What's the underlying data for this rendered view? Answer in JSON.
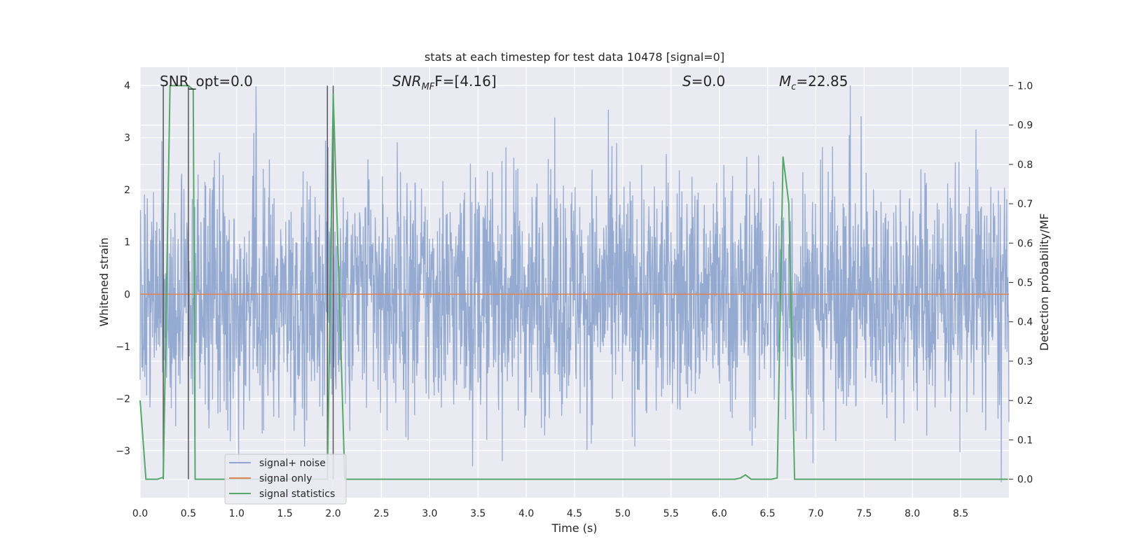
{
  "chart_data": {
    "type": "line",
    "title": "stats at each timestep for test data 10478 [signal=0]",
    "xlabel": "Time (s)",
    "ylabel": "Whitened strain",
    "y2label": "Detection probability/MF",
    "xlim": [
      0.0,
      9.0
    ],
    "ylim": [
      -3.9,
      4.35
    ],
    "y2lim": [
      -0.047,
      1.047
    ],
    "grid": true,
    "legend_position": "lower-left",
    "xticks": [
      "0.0",
      "0.5",
      "1.0",
      "1.5",
      "2.0",
      "2.5",
      "3.0",
      "3.5",
      "4.0",
      "4.5",
      "5.0",
      "5.5",
      "6.0",
      "6.5",
      "7.0",
      "7.5",
      "8.0",
      "8.5"
    ],
    "xtick_values": [
      0.0,
      0.5,
      1.0,
      1.5,
      2.0,
      2.5,
      3.0,
      3.5,
      4.0,
      4.5,
      5.0,
      5.5,
      6.0,
      6.5,
      7.0,
      7.5,
      8.0,
      8.5
    ],
    "yticks": [
      "−3",
      "−2",
      "−1",
      "0",
      "1",
      "2",
      "3",
      "4"
    ],
    "ytick_values": [
      -3,
      -2,
      -1,
      0,
      1,
      2,
      3,
      4
    ],
    "y2ticks": [
      "0.0",
      "0.1",
      "0.2",
      "0.3",
      "0.4",
      "0.5",
      "0.6",
      "0.7",
      "0.8",
      "0.9",
      "1.0"
    ],
    "y2tick_values": [
      0.0,
      0.1,
      0.2,
      0.3,
      0.4,
      0.5,
      0.6,
      0.7,
      0.8,
      0.9,
      1.0
    ],
    "annotations": {
      "snr_opt": "SNR_opt=0.0",
      "snr_mf_main": "SNR",
      "snr_mf_sub": "MF",
      "snr_mf_value": "F=[4.16]",
      "s_main": "S",
      "s_value": "=0.0",
      "mc_main": "M",
      "mc_sub": "c",
      "mc_value": "=22.85"
    },
    "series": [
      {
        "name": "signal+ noise",
        "color": "#8fa6cf",
        "axis": "left",
        "style": "whitened noise, amplitude envelope approx ±2.5, peaks up to 4.0 and down to -3.6"
      },
      {
        "name": "signal only",
        "color": "#dd8452",
        "axis": "left",
        "x": [
          0.0,
          9.0
        ],
        "y": [
          0.0,
          0.0
        ]
      },
      {
        "name": "signal statistics",
        "color": "#55a868",
        "axis": "right",
        "x": [
          0.0,
          0.06,
          0.18,
          0.24,
          0.31,
          0.5,
          0.55,
          0.57,
          1.89,
          1.94,
          2.0,
          2.06,
          2.12,
          6.16,
          6.22,
          6.27,
          6.33,
          6.54,
          6.6,
          6.66,
          6.72,
          6.78,
          8.99
        ],
        "y": [
          0.2,
          0.0,
          0.0,
          0.005,
          1.0,
          1.0,
          0.99,
          0.0,
          0.0,
          0.0,
          0.98,
          0.5,
          0.0,
          0.0,
          0.003,
          0.011,
          0.0,
          0.0,
          0.003,
          0.82,
          0.7,
          0.0,
          0.0
        ]
      }
    ],
    "vertical_lines": {
      "color": "#555555",
      "x": [
        0.24,
        0.5,
        1.94,
        2.0
      ]
    }
  },
  "legend": [
    {
      "label": "signal+ noise",
      "color": "#8fa6cf"
    },
    {
      "label": "signal only",
      "color": "#dd8452"
    },
    {
      "label": "signal statistics",
      "color": "#55a868"
    }
  ]
}
